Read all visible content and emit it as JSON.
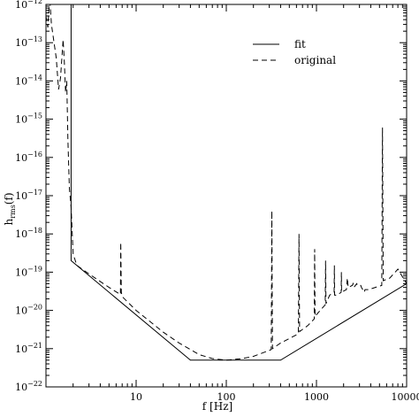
{
  "chart_data": {
    "type": "line",
    "xlabel": "f [Hz]",
    "ylabel": "h_rms(f)",
    "ylabel_main": "h",
    "ylabel_sub": "rms",
    "ylabel_arg": "(f)",
    "x_scale": "log",
    "y_scale": "log",
    "xlim": [
      1,
      10000
    ],
    "ylim": [
      1e-22,
      1e-12
    ],
    "x_ticks": [
      {
        "value": 10,
        "label": "10"
      },
      {
        "value": 100,
        "label": "100"
      },
      {
        "value": 1000,
        "label": "1000"
      },
      {
        "value": 10000,
        "label": "10000"
      }
    ],
    "y_ticks": [
      {
        "value": 1e-12,
        "base": "10",
        "exp": "−12"
      },
      {
        "value": 1e-13,
        "base": "10",
        "exp": "−13"
      },
      {
        "value": 1e-14,
        "base": "10",
        "exp": "−14"
      },
      {
        "value": 1e-15,
        "base": "10",
        "exp": "−15"
      },
      {
        "value": 1e-16,
        "base": "10",
        "exp": "−16"
      },
      {
        "value": 1e-17,
        "base": "10",
        "exp": "−17"
      },
      {
        "value": 1e-18,
        "base": "10",
        "exp": "−18"
      },
      {
        "value": 1e-19,
        "base": "10",
        "exp": "−19"
      },
      {
        "value": 1e-20,
        "base": "10",
        "exp": "−20"
      },
      {
        "value": 1e-21,
        "base": "10",
        "exp": "−21"
      },
      {
        "value": 1e-22,
        "base": "10",
        "exp": "−22"
      }
    ],
    "legend_position": "top-right",
    "grid": false,
    "series": [
      {
        "name": "fit",
        "style": "solid",
        "points": [
          [
            1.9,
            1e-12
          ],
          [
            1.9,
            2e-19
          ],
          [
            40,
            5e-22
          ],
          [
            400,
            5e-22
          ],
          [
            10000,
            5e-20
          ]
        ]
      },
      {
        "name": "original",
        "style": "dashed",
        "points": [
          [
            1.0,
            5e-13
          ],
          [
            1.05,
            2.5e-13
          ],
          [
            1.1,
            1.5e-12
          ],
          [
            1.15,
            3e-13
          ],
          [
            1.3,
            4e-14
          ],
          [
            1.38,
            6e-15
          ],
          [
            1.45,
            1.2e-14
          ],
          [
            1.55,
            1.2e-13
          ],
          [
            1.6,
            3e-14
          ],
          [
            1.65,
            5e-15
          ],
          [
            1.7,
            1e-14
          ],
          [
            1.75,
            3e-16
          ],
          [
            1.82,
            1.5e-17
          ],
          [
            1.9,
            5e-18
          ],
          [
            2.0,
            3e-19
          ],
          [
            2.2,
            1.5e-19
          ],
          [
            3,
            9e-20
          ],
          [
            5,
            4e-20
          ],
          [
            6.7,
            2.6e-20
          ],
          [
            6.75,
            6e-19
          ],
          [
            6.85,
            3e-20
          ],
          [
            7.0,
            2.3e-20
          ],
          [
            10,
            1e-20
          ],
          [
            20,
            2.7e-21
          ],
          [
            30,
            1.4e-21
          ],
          [
            50,
            7e-22
          ],
          [
            70,
            5.5e-22
          ],
          [
            100,
            5e-22
          ],
          [
            150,
            5.5e-22
          ],
          [
            200,
            6.3e-22
          ],
          [
            300,
            9e-22
          ],
          [
            315,
            9.5e-22
          ],
          [
            320,
            4e-18
          ],
          [
            325,
            1e-21
          ],
          [
            400,
            1.4e-21
          ],
          [
            600,
            2.3e-21
          ],
          [
            630,
            2.5e-21
          ],
          [
            640,
            1e-18
          ],
          [
            650,
            2.8e-21
          ],
          [
            800,
            4e-21
          ],
          [
            945,
            6e-21
          ],
          [
            955,
            4e-19
          ],
          [
            965,
            7e-21
          ],
          [
            1100,
            1e-20
          ],
          [
            1250,
            1.4e-20
          ],
          [
            1262,
            2e-19
          ],
          [
            1275,
            1.5e-20
          ],
          [
            1400,
            2.5e-20
          ],
          [
            1570,
            3e-20
          ],
          [
            1580,
            1.5e-19
          ],
          [
            1590,
            2.5e-20
          ],
          [
            1700,
            2.5e-20
          ],
          [
            1880,
            3e-20
          ],
          [
            1890,
            1e-19
          ],
          [
            1900,
            3e-20
          ],
          [
            2150,
            3.5e-20
          ],
          [
            2200,
            7e-20
          ],
          [
            2250,
            4e-20
          ],
          [
            2500,
            4.5e-20
          ],
          [
            2550,
            5e-20
          ],
          [
            2600,
            4e-20
          ],
          [
            2800,
            5e-20
          ],
          [
            2850,
            4.5e-20
          ],
          [
            3100,
            4.5e-20
          ],
          [
            3150,
            4e-20
          ],
          [
            3400,
            3e-20
          ],
          [
            3450,
            3.5e-20
          ],
          [
            3800,
            3.5e-20
          ],
          [
            4500,
            4e-20
          ],
          [
            5300,
            4.5e-20
          ],
          [
            5400,
            6e-16
          ],
          [
            5500,
            6e-20
          ],
          [
            6500,
            7e-20
          ],
          [
            8000,
            1.2e-19
          ],
          [
            10000,
            5e-20
          ]
        ]
      }
    ]
  }
}
